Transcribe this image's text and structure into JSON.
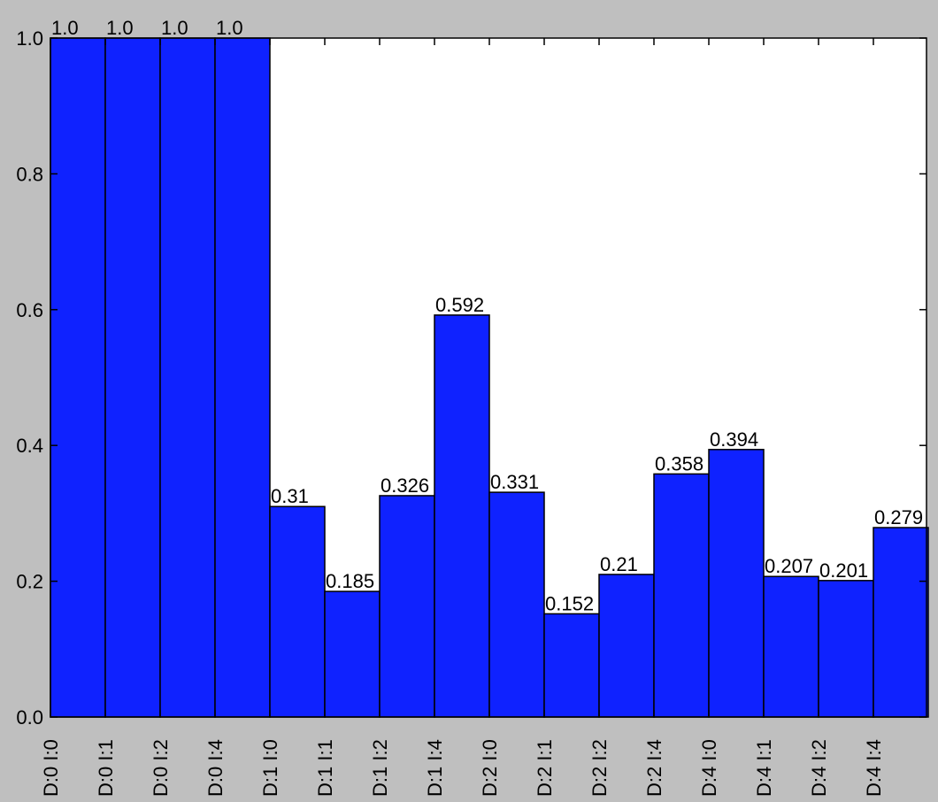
{
  "chart_data": {
    "type": "bar",
    "title": "",
    "xlabel": "",
    "ylabel": "",
    "ylim": [
      0,
      1.0
    ],
    "yticks": [
      "0.0",
      "0.2",
      "0.4",
      "0.6",
      "0.8",
      "1.0"
    ],
    "grid": false,
    "categories": [
      "D:0 I:0",
      "D:0 I:1",
      "D:0 I:2",
      "D:0 I:4",
      "D:1 I:0",
      "D:1 I:1",
      "D:1 I:2",
      "D:1 I:4",
      "D:2 I:0",
      "D:2 I:1",
      "D:2 I:2",
      "D:2 I:4",
      "D:4 I:0",
      "D:4 I:1",
      "D:4 I:2",
      "D:4 I:4"
    ],
    "values": [
      1.0,
      1.0,
      1.0,
      1.0,
      0.31,
      0.185,
      0.326,
      0.592,
      0.331,
      0.152,
      0.21,
      0.358,
      0.394,
      0.207,
      0.201,
      0.279
    ],
    "value_labels": [
      "1.0",
      "1.0",
      "1.0",
      "1.0",
      "0.31",
      "0.185",
      "0.326",
      "0.592",
      "0.331",
      "0.152",
      "0.21",
      "0.358",
      "0.394",
      "0.207",
      "0.201",
      "0.279"
    ],
    "bar_color": "#0f22ff",
    "background_color": "#bfbfbf",
    "plot_background_color": "#ffffff"
  }
}
